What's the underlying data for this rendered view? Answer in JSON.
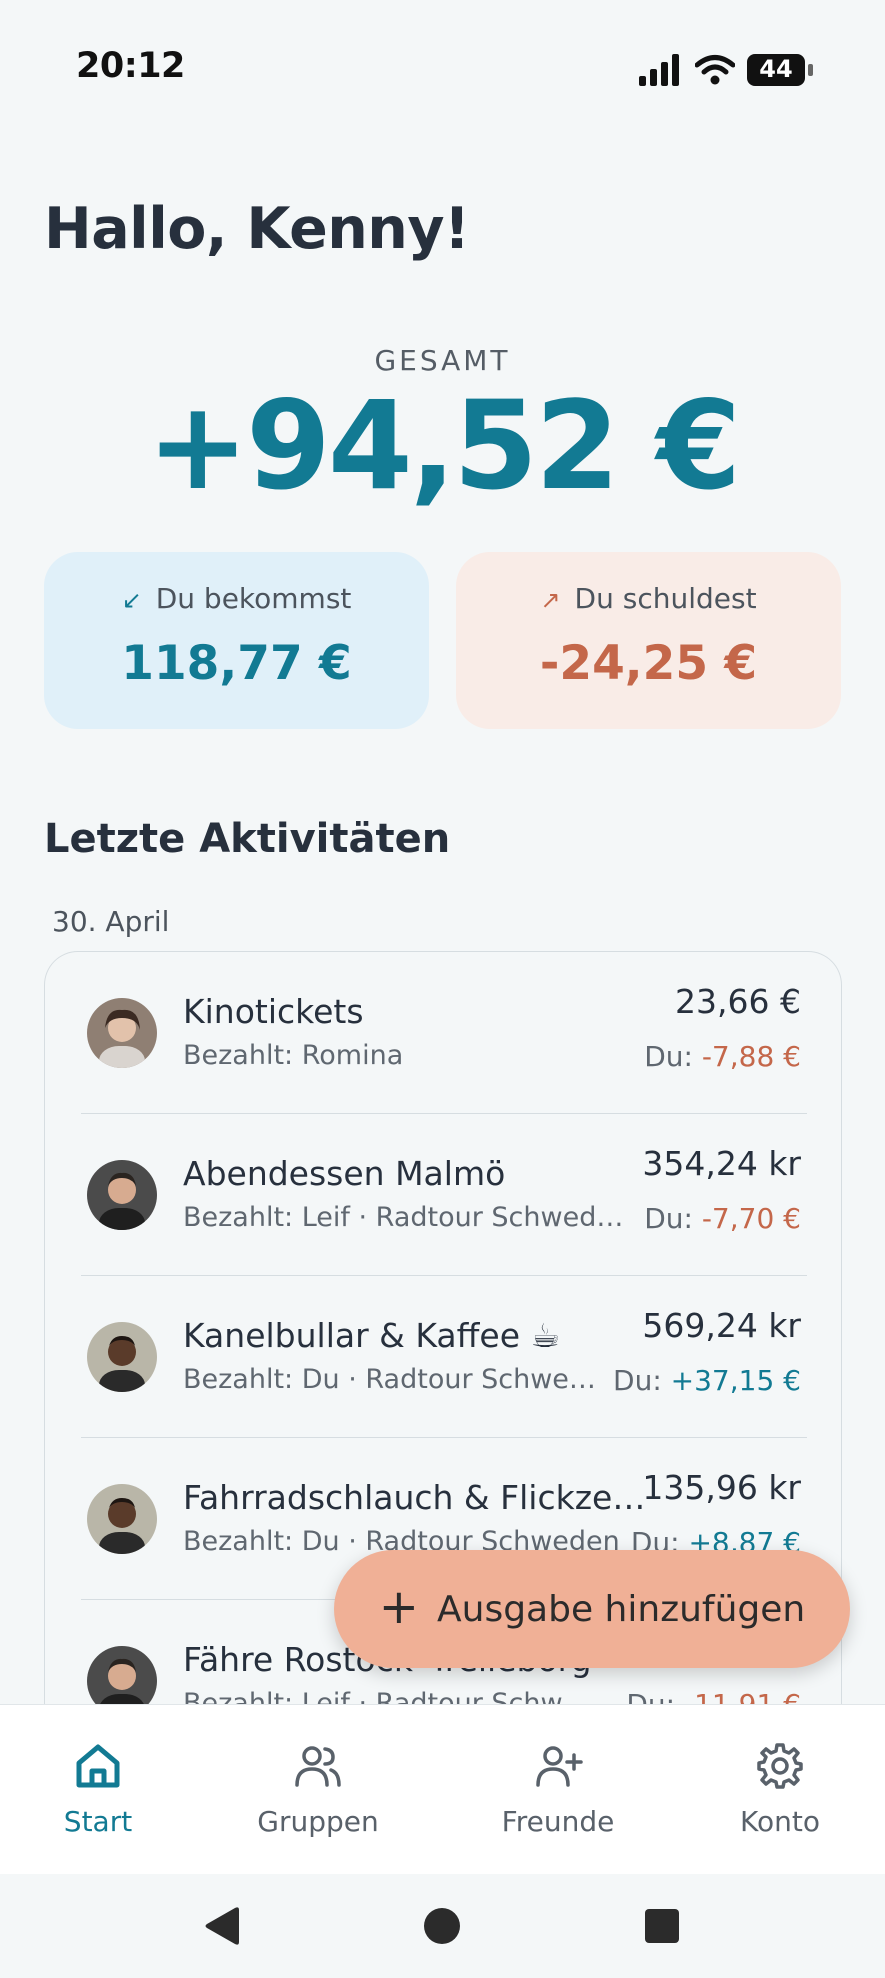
{
  "status_bar": {
    "time": "20:12",
    "battery": "44"
  },
  "greeting": "Hallo, Kenny!",
  "summary": {
    "label": "GESAMT",
    "total": "+94,52 €",
    "receive": {
      "label": "Du bekommst",
      "amount": "118,77 €",
      "color": "#127a93"
    },
    "owe": {
      "label": "Du schuldest",
      "amount": "-24,25 €",
      "color": "#c4674a"
    }
  },
  "activities": {
    "title": "Letzte Aktivitäten",
    "date": "30. April",
    "items": [
      {
        "title": "Kinotickets",
        "subtitle": "Bezahlt: Romina",
        "amount": "23,66 €",
        "share_prefix": "Du: ",
        "share": "-7,88 €",
        "share_color": "#c4674a"
      },
      {
        "title": "Abendessen Malmö",
        "subtitle": "Bezahlt: Leif · Radtour Schwed…",
        "amount": "354,24 kr",
        "share_prefix": "Du: ",
        "share": "-7,70 €",
        "share_color": "#c4674a"
      },
      {
        "title": "Kanelbullar & Kaffee ☕",
        "subtitle": "Bezahlt: Du · Radtour Schwe…",
        "amount": "569,24 kr",
        "share_prefix": "Du: ",
        "share": "+37,15 €",
        "share_color": "#127a93"
      },
      {
        "title": "Fahrradschlauch & Flickze…",
        "subtitle": "Bezahlt: Du · Radtour Schweden",
        "amount": "135,96 kr",
        "share_prefix": "Du: ",
        "share": "+8,87 €",
        "share_color": "#127a93"
      },
      {
        "title": "Fähre Rostock–Trelleborg",
        "subtitle": "Bezahlt: Leif · Radtour Schw…",
        "amount": "",
        "share_prefix": "Du: ",
        "share": "-11,91 €",
        "share_color": "#c4674a"
      }
    ]
  },
  "fab": {
    "label": "Ausgabe hinzufügen",
    "icon": "plus-icon"
  },
  "nav": {
    "items": [
      {
        "label": "Start",
        "icon": "home-icon",
        "active": true
      },
      {
        "label": "Gruppen",
        "icon": "group-icon",
        "active": false
      },
      {
        "label": "Freunde",
        "icon": "add-friend-icon",
        "active": false
      },
      {
        "label": "Konto",
        "icon": "gear-icon",
        "active": false
      }
    ]
  }
}
